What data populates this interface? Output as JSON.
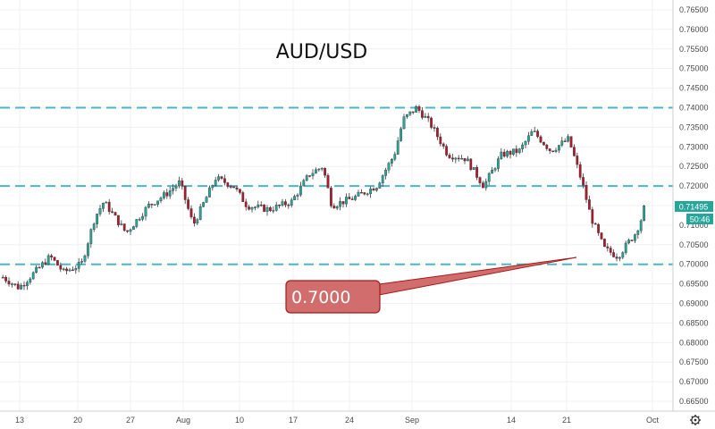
{
  "chart_data": {
    "type": "candlestick",
    "title": "AUD/USD",
    "y_ticks": [
      "0.76500",
      "0.76000",
      "0.75500",
      "0.75000",
      "0.74500",
      "0.74000",
      "0.73500",
      "0.73000",
      "0.72500",
      "0.72000",
      "0.71500",
      "0.71000",
      "0.70500",
      "0.70000",
      "0.69500",
      "0.69000",
      "0.68500",
      "0.68000",
      "0.67500",
      "0.67000",
      "0.66500"
    ],
    "ylim": [
      0.6625,
      0.7675
    ],
    "x_ticks": [
      "13",
      "20",
      "27",
      "Aug",
      "10",
      "17",
      "24",
      "Sep",
      "14",
      "21",
      "Oct"
    ],
    "levels": [
      0.74,
      0.72,
      0.7
    ],
    "annotation": "0.7000",
    "current_price": "0.71495",
    "countdown": "50:46",
    "price_path": [
      [
        0,
        0.697
      ],
      [
        20,
        0.694
      ],
      [
        40,
        0.6985
      ],
      [
        55,
        0.702
      ],
      [
        70,
        0.698
      ],
      [
        90,
        0.7
      ],
      [
        105,
        0.712
      ],
      [
        115,
        0.716
      ],
      [
        140,
        0.708
      ],
      [
        165,
        0.715
      ],
      [
        185,
        0.718
      ],
      [
        200,
        0.721
      ],
      [
        215,
        0.71
      ],
      [
        240,
        0.722
      ],
      [
        260,
        0.72
      ],
      [
        275,
        0.715
      ],
      [
        300,
        0.714
      ],
      [
        325,
        0.716
      ],
      [
        345,
        0.723
      ],
      [
        360,
        0.725
      ],
      [
        370,
        0.715
      ],
      [
        395,
        0.717
      ],
      [
        420,
        0.72
      ],
      [
        440,
        0.728
      ],
      [
        450,
        0.737
      ],
      [
        465,
        0.74
      ],
      [
        480,
        0.736
      ],
      [
        500,
        0.728
      ],
      [
        520,
        0.727
      ],
      [
        540,
        0.72
      ],
      [
        560,
        0.728
      ],
      [
        580,
        0.729
      ],
      [
        595,
        0.734
      ],
      [
        615,
        0.729
      ],
      [
        635,
        0.732
      ],
      [
        650,
        0.721
      ],
      [
        660,
        0.712
      ],
      [
        675,
        0.704
      ],
      [
        690,
        0.702
      ],
      [
        710,
        0.708
      ],
      [
        722,
        0.7148
      ]
    ],
    "grid": true
  },
  "colors": {
    "up": "#26a69a",
    "down": "#b2182b",
    "level": "#4bb5c9",
    "callout_fill": "#d26d6d",
    "callout_stroke": "#a21c1c",
    "price_tag": "#26a69a"
  },
  "icons": {
    "settings": "gear-icon"
  }
}
